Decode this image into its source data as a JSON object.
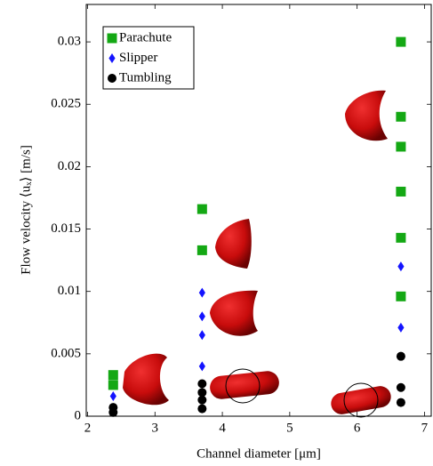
{
  "chart_data": {
    "type": "scatter",
    "x_label": "Channel diameter [μm]",
    "y_label": "Flow velocity ⟨uₓ⟩ [m/s]",
    "xlim": [
      1.98,
      7.1
    ],
    "ylim": [
      0,
      0.033
    ],
    "xticks": [
      2,
      3,
      4,
      5,
      6,
      7
    ],
    "yticks": [
      0,
      0.005,
      0.01,
      0.015,
      0.02,
      0.025,
      0.03
    ],
    "legend": "upper left",
    "series": [
      {
        "name": "Parachute",
        "color": "#14a814",
        "marker": "square",
        "x": [
          2.38,
          2.38,
          3.7,
          3.7,
          6.65,
          6.65,
          6.65,
          6.65,
          6.65,
          6.65
        ],
        "values": [
          0.0033,
          0.0025,
          0.0166,
          0.0133,
          0.03,
          0.024,
          0.0216,
          0.018,
          0.0143,
          0.0096
        ]
      },
      {
        "name": "Slipper",
        "color": "#1414ff",
        "marker": "diamond",
        "x": [
          2.38,
          3.7,
          3.7,
          3.7,
          3.7,
          6.65,
          6.65
        ],
        "values": [
          0.0016,
          0.0099,
          0.008,
          0.0065,
          0.004,
          0.012,
          0.0071
        ]
      },
      {
        "name": "Tumbling",
        "color": "#000000",
        "marker": "circle",
        "x": [
          2.38,
          2.38,
          3.7,
          3.7,
          3.7,
          3.7,
          6.65,
          6.65,
          6.65
        ],
        "values": [
          0.0007,
          0.0003,
          0.0026,
          0.0019,
          0.0013,
          0.0006,
          0.0048,
          0.0023,
          0.0011
        ]
      }
    ]
  }
}
